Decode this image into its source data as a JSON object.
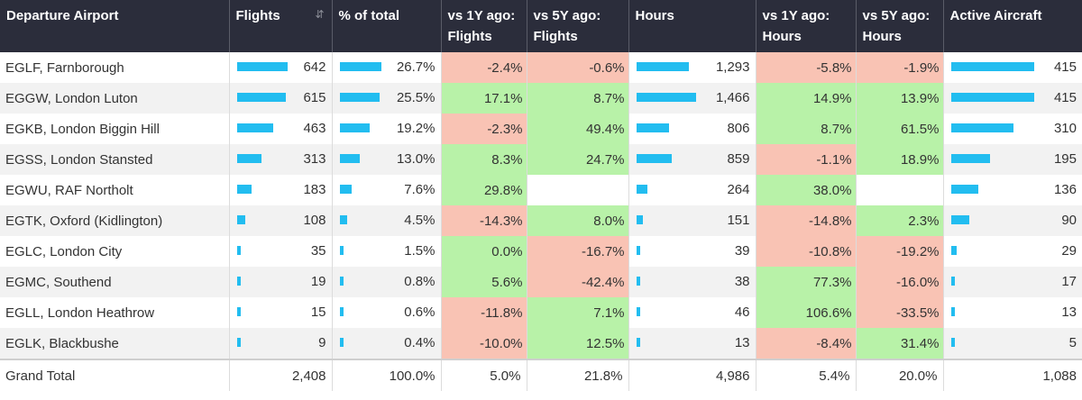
{
  "headers": {
    "airport": "Departure Airport",
    "flights": "Flights",
    "pct_total": "% of total",
    "vs1y_flights": [
      "vs 1Y ago:",
      "Flights"
    ],
    "vs5y_flights": [
      "vs 5Y ago:",
      "Flights"
    ],
    "hours": "Hours",
    "vs1y_hours": [
      "vs 1Y ago:",
      "Hours"
    ],
    "vs5y_hours": [
      "vs 5Y ago:",
      "Hours"
    ],
    "aircraft": "Active Aircraft"
  },
  "colors": {
    "bar": "#22bdf0",
    "positive": "#b8f2a8",
    "negative": "#f9c3b4",
    "header_bg": "#2b2d3b"
  },
  "rows": [
    {
      "airport": "EGLF, Farnborough",
      "flights": 642,
      "flights_text": "642",
      "pct": 26.7,
      "pct_text": "26.7%",
      "vs1y_f": "-2.4%",
      "vs5y_f": "-0.6%",
      "hours": 1293,
      "hours_text": "1,293",
      "vs1y_h": "-5.8%",
      "vs5y_h": "-1.9%",
      "aircraft": 415,
      "aircraft_text": "415"
    },
    {
      "airport": "EGGW, London Luton",
      "flights": 615,
      "flights_text": "615",
      "pct": 25.5,
      "pct_text": "25.5%",
      "vs1y_f": "17.1%",
      "vs5y_f": "8.7%",
      "hours": 1466,
      "hours_text": "1,466",
      "vs1y_h": "14.9%",
      "vs5y_h": "13.9%",
      "aircraft": 415,
      "aircraft_text": "415"
    },
    {
      "airport": "EGKB, London Biggin Hill",
      "flights": 463,
      "flights_text": "463",
      "pct": 19.2,
      "pct_text": "19.2%",
      "vs1y_f": "-2.3%",
      "vs5y_f": "49.4%",
      "hours": 806,
      "hours_text": "806",
      "vs1y_h": "8.7%",
      "vs5y_h": "61.5%",
      "aircraft": 310,
      "aircraft_text": "310"
    },
    {
      "airport": "EGSS, London Stansted",
      "flights": 313,
      "flights_text": "313",
      "pct": 13.0,
      "pct_text": "13.0%",
      "vs1y_f": "8.3%",
      "vs5y_f": "24.7%",
      "hours": 859,
      "hours_text": "859",
      "vs1y_h": "-1.1%",
      "vs5y_h": "18.9%",
      "aircraft": 195,
      "aircraft_text": "195"
    },
    {
      "airport": "EGWU, RAF Northolt",
      "flights": 183,
      "flights_text": "183",
      "pct": 7.6,
      "pct_text": "7.6%",
      "vs1y_f": "29.8%",
      "vs5y_f": "",
      "hours": 264,
      "hours_text": "264",
      "vs1y_h": "38.0%",
      "vs5y_h": "",
      "aircraft": 136,
      "aircraft_text": "136"
    },
    {
      "airport": "EGTK, Oxford (Kidlington)",
      "flights": 108,
      "flights_text": "108",
      "pct": 4.5,
      "pct_text": "4.5%",
      "vs1y_f": "-14.3%",
      "vs5y_f": "8.0%",
      "hours": 151,
      "hours_text": "151",
      "vs1y_h": "-14.8%",
      "vs5y_h": "2.3%",
      "aircraft": 90,
      "aircraft_text": "90"
    },
    {
      "airport": "EGLC, London City",
      "flights": 35,
      "flights_text": "35",
      "pct": 1.5,
      "pct_text": "1.5%",
      "vs1y_f": "0.0%",
      "vs5y_f": "-16.7%",
      "hours": 39,
      "hours_text": "39",
      "vs1y_h": "-10.8%",
      "vs5y_h": "-19.2%",
      "aircraft": 29,
      "aircraft_text": "29"
    },
    {
      "airport": "EGMC, Southend",
      "flights": 19,
      "flights_text": "19",
      "pct": 0.8,
      "pct_text": "0.8%",
      "vs1y_f": "5.6%",
      "vs5y_f": "-42.4%",
      "hours": 38,
      "hours_text": "38",
      "vs1y_h": "77.3%",
      "vs5y_h": "-16.0%",
      "aircraft": 17,
      "aircraft_text": "17"
    },
    {
      "airport": "EGLL, London Heathrow",
      "flights": 15,
      "flights_text": "15",
      "pct": 0.6,
      "pct_text": "0.6%",
      "vs1y_f": "-11.8%",
      "vs5y_f": "7.1%",
      "hours": 46,
      "hours_text": "46",
      "vs1y_h": "106.6%",
      "vs5y_h": "-33.5%",
      "aircraft": 13,
      "aircraft_text": "13"
    },
    {
      "airport": "EGLK, Blackbushe",
      "flights": 9,
      "flights_text": "9",
      "pct": 0.4,
      "pct_text": "0.4%",
      "vs1y_f": "-10.0%",
      "vs5y_f": "12.5%",
      "hours": 13,
      "hours_text": "13",
      "vs1y_h": "-8.4%",
      "vs5y_h": "31.4%",
      "aircraft": 5,
      "aircraft_text": "5"
    }
  ],
  "total": {
    "label": "Grand Total",
    "flights": "2,408",
    "pct": "100.0%",
    "vs1y_f": "5.0%",
    "vs5y_f": "21.8%",
    "hours": "4,986",
    "vs1y_h": "5.4%",
    "vs5y_h": "20.0%",
    "aircraft": "1,088"
  }
}
